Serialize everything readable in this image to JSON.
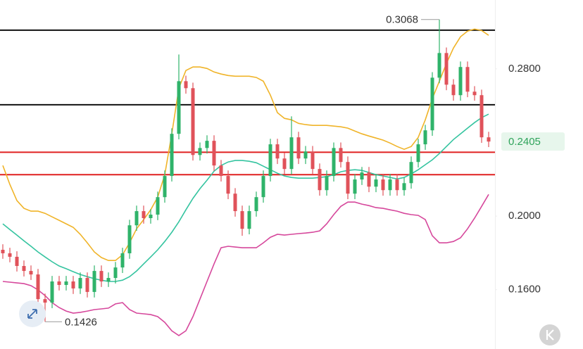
{
  "chart_data": {
    "type": "candlestick",
    "up_color": "#2fb36a",
    "down_color": "#e0525a",
    "open": [
      0.1817,
      0.1798,
      0.1779,
      0.1729,
      0.1702,
      0.1683,
      0.1549,
      0.153,
      0.1645,
      0.1626,
      0.1645,
      0.1607,
      0.1664,
      0.1588,
      0.1702,
      0.1645,
      0.1664,
      0.1721,
      0.1798,
      0.195,
      0.2027,
      0.1989,
      0.2008,
      0.2103,
      0.2218,
      0.2447,
      0.2733,
      0.2695,
      0.2332,
      0.237,
      0.2409,
      0.2275,
      0.2218,
      0.2122,
      0.2027,
      0.1931,
      0.2027,
      0.2103,
      0.2218,
      0.239,
      0.2313,
      0.2256,
      0.2428,
      0.2313,
      0.2351,
      0.2256,
      0.2141,
      0.2218,
      0.237,
      0.2294,
      0.2122,
      0.2199,
      0.2237,
      0.216,
      0.2199,
      0.2141,
      0.2199,
      0.2141,
      0.2179,
      0.2294,
      0.239,
      0.2466,
      0.2752,
      0.2886,
      0.2714,
      0.2657,
      0.281,
      0.2676,
      0.2657,
      0.2428
    ],
    "high": [
      0.1847,
      0.1828,
      0.1809,
      0.1759,
      0.1732,
      0.1713,
      0.1579,
      0.1675,
      0.1675,
      0.1675,
      0.1675,
      0.1694,
      0.1694,
      0.1732,
      0.1732,
      0.1694,
      0.1751,
      0.1828,
      0.198,
      0.2057,
      0.2057,
      0.2038,
      0.2133,
      0.2248,
      0.2477,
      0.2878,
      0.2763,
      0.2725,
      0.24,
      0.2439,
      0.2439,
      0.2305,
      0.2248,
      0.2152,
      0.2057,
      0.2057,
      0.2133,
      0.2248,
      0.242,
      0.242,
      0.2343,
      0.2542,
      0.2458,
      0.2381,
      0.2381,
      0.2286,
      0.2248,
      0.24,
      0.24,
      0.2324,
      0.2229,
      0.2267,
      0.2267,
      0.2229,
      0.2229,
      0.2229,
      0.2229,
      0.2209,
      0.2324,
      0.242,
      0.2496,
      0.2782,
      0.3068,
      0.2916,
      0.2744,
      0.284,
      0.284,
      0.2706,
      0.2687,
      0.2458
    ],
    "low": [
      0.1768,
      0.1749,
      0.1699,
      0.1672,
      0.1653,
      0.1519,
      0.1426,
      0.15,
      0.1596,
      0.1596,
      0.1577,
      0.1577,
      0.1558,
      0.1558,
      0.1615,
      0.1615,
      0.1634,
      0.1691,
      0.1768,
      0.192,
      0.1959,
      0.1959,
      0.1978,
      0.2073,
      0.2188,
      0.2417,
      0.2665,
      0.2302,
      0.2302,
      0.234,
      0.2245,
      0.2188,
      0.2092,
      0.1997,
      0.1893,
      0.1901,
      0.1997,
      0.2073,
      0.2188,
      0.2283,
      0.2226,
      0.2226,
      0.2283,
      0.2283,
      0.2226,
      0.2111,
      0.2111,
      0.2188,
      0.2264,
      0.2092,
      0.2092,
      0.2169,
      0.213,
      0.213,
      0.2111,
      0.2111,
      0.2111,
      0.2111,
      0.2149,
      0.2264,
      0.236,
      0.2436,
      0.2722,
      0.2684,
      0.2627,
      0.2627,
      0.2646,
      0.2627,
      0.2398,
      0.2375
    ],
    "close": [
      0.1798,
      0.1779,
      0.1729,
      0.1702,
      0.1683,
      0.1549,
      0.153,
      0.1645,
      0.1626,
      0.1645,
      0.1607,
      0.1664,
      0.1588,
      0.1702,
      0.1645,
      0.1664,
      0.1721,
      0.1798,
      0.195,
      0.2027,
      0.1989,
      0.2008,
      0.2103,
      0.2218,
      0.2447,
      0.2733,
      0.2695,
      0.2332,
      0.237,
      0.2409,
      0.2275,
      0.2218,
      0.2122,
      0.2027,
      0.1931,
      0.2027,
      0.2103,
      0.2218,
      0.239,
      0.2313,
      0.2256,
      0.2428,
      0.2313,
      0.2351,
      0.2256,
      0.2141,
      0.2218,
      0.237,
      0.2294,
      0.2122,
      0.2199,
      0.2237,
      0.216,
      0.2199,
      0.2141,
      0.2199,
      0.2141,
      0.2179,
      0.2294,
      0.239,
      0.2466,
      0.2752,
      0.2886,
      0.2714,
      0.2657,
      0.281,
      0.2676,
      0.2657,
      0.2428,
      0.2405
    ],
    "bands": [
      {
        "color": "#f0b429",
        "values": [
          0.2275,
          0.2172,
          0.2084,
          0.2042,
          0.2027,
          0.2027,
          0.2015,
          0.1996,
          0.1977,
          0.1958,
          0.1939,
          0.1901,
          0.1855,
          0.1805,
          0.1775,
          0.1759,
          0.1759,
          0.179,
          0.1855,
          0.1931,
          0.1981,
          0.2034,
          0.2103,
          0.2225,
          0.2447,
          0.2695,
          0.2791,
          0.281,
          0.281,
          0.2802,
          0.2783,
          0.2772,
          0.2764,
          0.276,
          0.276,
          0.276,
          0.2753,
          0.2733,
          0.2657,
          0.2562,
          0.2531,
          0.2523,
          0.2504,
          0.2497,
          0.2493,
          0.2493,
          0.2493,
          0.2489,
          0.2485,
          0.2478,
          0.2462,
          0.2447,
          0.2435,
          0.2424,
          0.2413,
          0.2397,
          0.2378,
          0.2363,
          0.2378,
          0.2428,
          0.2523,
          0.2638,
          0.2733,
          0.2829,
          0.2913,
          0.2974,
          0.3005,
          0.3016,
          0.3008,
          0.2982
        ]
      },
      {
        "color": "#35c4a0",
        "values": [
          0.1958,
          0.1927,
          0.1897,
          0.1866,
          0.1836,
          0.1805,
          0.1778,
          0.1752,
          0.1729,
          0.1714,
          0.1698,
          0.1683,
          0.1671,
          0.166,
          0.1652,
          0.1645,
          0.1645,
          0.1652,
          0.1671,
          0.1702,
          0.174,
          0.1778,
          0.1817,
          0.1862,
          0.1912,
          0.1969,
          0.2034,
          0.2096,
          0.2149,
          0.2195,
          0.2244,
          0.2275,
          0.2294,
          0.2302,
          0.2302,
          0.2298,
          0.229,
          0.2271,
          0.2252,
          0.2233,
          0.2218,
          0.221,
          0.2206,
          0.2206,
          0.2206,
          0.221,
          0.2214,
          0.2225,
          0.2241,
          0.2248,
          0.2252,
          0.2248,
          0.2237,
          0.2225,
          0.2218,
          0.221,
          0.2202,
          0.221,
          0.2229,
          0.2252,
          0.2279,
          0.2306,
          0.234,
          0.2378,
          0.2416,
          0.2447,
          0.2478,
          0.2508,
          0.2535,
          0.2554
        ]
      },
      {
        "color": "#d6489c",
        "values": [
          0.1645,
          0.1641,
          0.1637,
          0.1633,
          0.1622,
          0.1599,
          0.1568,
          0.153,
          0.1503,
          0.1484,
          0.1473,
          0.1477,
          0.1484,
          0.1492,
          0.1496,
          0.15,
          0.1523,
          0.153,
          0.1492,
          0.1473,
          0.1469,
          0.1465,
          0.1454,
          0.1423,
          0.1377,
          0.1351,
          0.1377,
          0.1454,
          0.1549,
          0.1645,
          0.174,
          0.1828,
          0.1836,
          0.1832,
          0.1828,
          0.1828,
          0.1828,
          0.1855,
          0.1885,
          0.1901,
          0.1897,
          0.1901,
          0.1905,
          0.1908,
          0.1912,
          0.192,
          0.1958,
          0.2008,
          0.2053,
          0.2076,
          0.2076,
          0.2065,
          0.2057,
          0.2046,
          0.2042,
          0.2034,
          0.2027,
          0.2015,
          0.2008,
          0.2004,
          0.1981,
          0.1893,
          0.1855,
          0.1855,
          0.1862,
          0.1882,
          0.1931,
          0.1989,
          0.2053,
          0.2118
        ]
      }
    ],
    "levels": [
      {
        "value": 0.301,
        "color": "#111111"
      },
      {
        "value": 0.2605,
        "color": "#111111"
      },
      {
        "value": 0.2347,
        "color": "#e02020"
      },
      {
        "value": 0.2225,
        "color": "#e02020"
      }
    ],
    "ylim": [
      0.1278,
      0.3174
    ],
    "yticks": [
      {
        "value": 0.28,
        "label": "0.2800"
      },
      {
        "value": 0.2,
        "label": "0.2000"
      },
      {
        "value": 0.16,
        "label": "0.1600"
      }
    ],
    "last_price": {
      "value": 0.2405,
      "label": "0.2405",
      "color": "#2ea35a"
    },
    "annotations": [
      {
        "value": 0.3068,
        "label": "0.3068",
        "side": "left"
      },
      {
        "value": 0.1426,
        "label": "0.1426",
        "side": "right"
      }
    ]
  }
}
